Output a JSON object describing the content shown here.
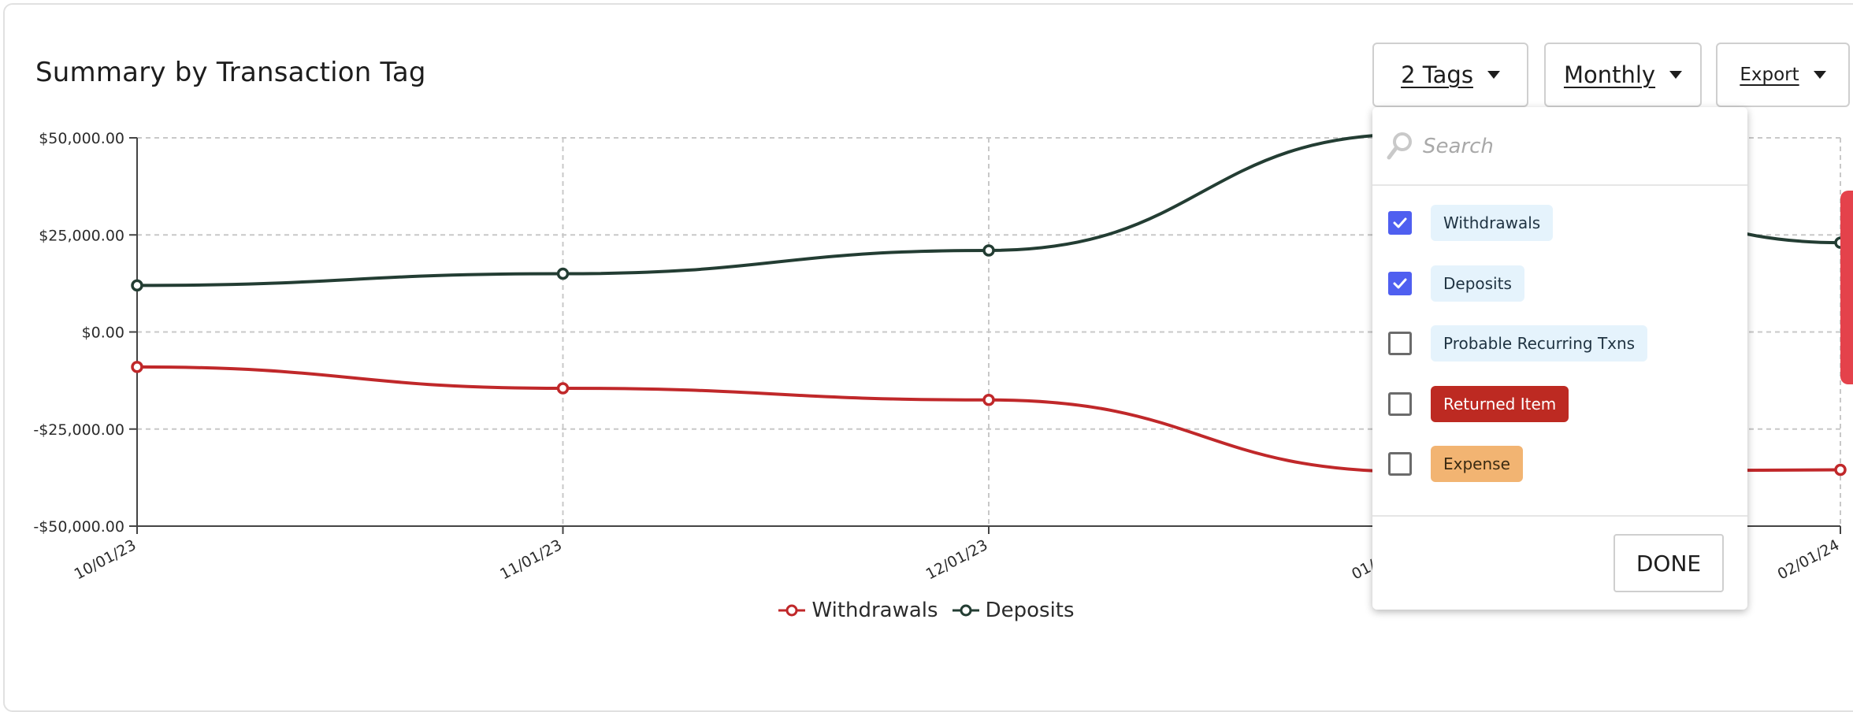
{
  "header": {
    "title": "Summary by Transaction Tag"
  },
  "controls": {
    "tags_label": "2 Tags",
    "frequency_label": "Monthly",
    "export_label": "Export"
  },
  "dropdown": {
    "search_placeholder": "Search",
    "items": [
      {
        "label": "Withdrawals",
        "checked": true,
        "bg": "#e5f3fc",
        "fg": "#1f3342"
      },
      {
        "label": "Deposits",
        "checked": true,
        "bg": "#e5f3fc",
        "fg": "#1f3342"
      },
      {
        "label": "Probable Recurring Txns",
        "checked": false,
        "bg": "#e5f3fc",
        "fg": "#1f3342"
      },
      {
        "label": "Returned Item",
        "checked": false,
        "bg": "#bd2a22",
        "fg": "#ffffff"
      },
      {
        "label": "Expense",
        "checked": false,
        "bg": "#f2b472",
        "fg": "#3a2a12"
      }
    ],
    "done_label": "DONE"
  },
  "colors": {
    "withdrawals": "#c0282a",
    "deposits": "#233d33",
    "checkbox_accent": "#4f5ff0",
    "grid": "#c8c8c8"
  },
  "chart_data": {
    "type": "line",
    "x": [
      "10/01/23",
      "11/01/23",
      "12/01/23",
      "01/01/24",
      "02/01/24"
    ],
    "y_ticks": [
      "$50,000.00",
      "$25,000.00",
      "$0.00",
      "-$25,000.00",
      "-$50,000.00"
    ],
    "ylim": [
      -50000,
      50000
    ],
    "grid": true,
    "legend_position": "bottom-center",
    "series": [
      {
        "name": "Withdrawals",
        "values": [
          -9000,
          -14500,
          -17500,
          -36000,
          -35500
        ]
      },
      {
        "name": "Deposits",
        "values": [
          12000,
          15000,
          21000,
          51000,
          23000
        ]
      }
    ]
  }
}
